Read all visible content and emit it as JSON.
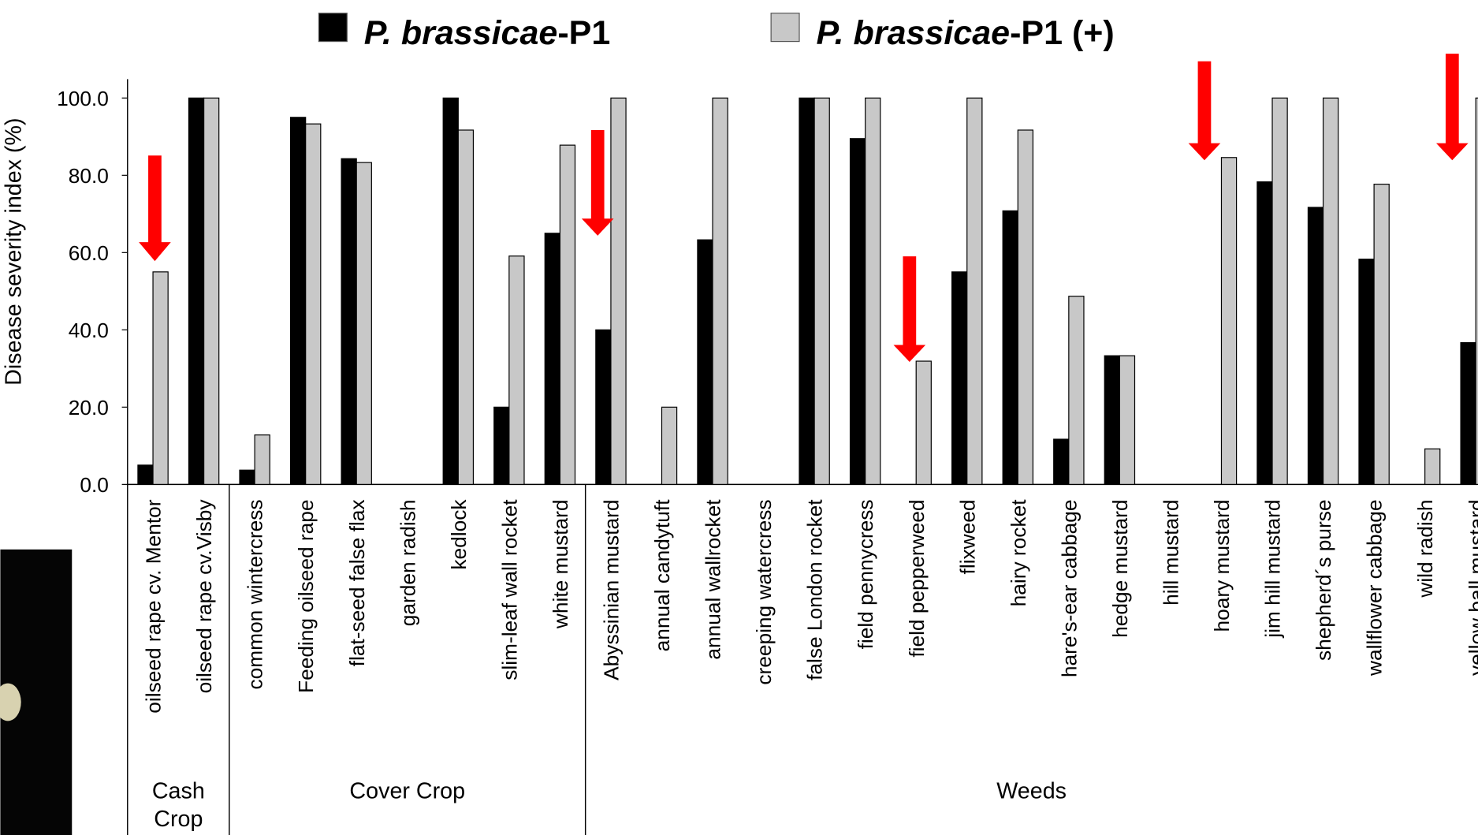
{
  "chart_data": {
    "type": "bar",
    "y_label": "Disease severity index (%)",
    "categories": [
      "oilseed rape cv. Mentor",
      "oilseed rape cv.Visby",
      "common wintercress",
      "Feeding oilseed rape",
      "flat-seed false flax",
      "garden radish",
      "kedlock",
      "slim-leaf wall rocket",
      "white mustard",
      "Abyssinian mustard",
      "annual candytuft",
      "annual wallrocket",
      "creeping watercress",
      "false London rocket",
      "field pennycress",
      "field pepperweed",
      "flixweed",
      "hairy rocket",
      "hare's-ear cabbage",
      "hedge mustard",
      "hill mustard",
      "hoary mustard",
      "jim hill mustard",
      "shepherd´s purse",
      "wallflower cabbage",
      "wild radish",
      "yellow ball mustard"
    ],
    "groups": [
      {
        "name": "Cash Crop",
        "count": 2
      },
      {
        "name": "Cover Crop",
        "count": 7
      },
      {
        "name": "Weeds",
        "count": 18
      }
    ],
    "series": [
      {
        "name": "P. brassicae-P1",
        "color": "#000000",
        "values": [
          5,
          100,
          3.7,
          95,
          84.3,
          0,
          100,
          20,
          65,
          40,
          0,
          63.3,
          0,
          100,
          89.5,
          0,
          55,
          70.8,
          11.7,
          33.3,
          0,
          0,
          78.3,
          71.7,
          58.3,
          0,
          36.7
        ]
      },
      {
        "name": "P. brassicae-P1 (+)",
        "color": "#c8c8c8",
        "values": [
          55,
          100,
          12.8,
          93.3,
          83.3,
          0,
          91.7,
          59.1,
          87.8,
          100,
          20,
          100,
          0,
          100,
          100,
          31.9,
          100,
          91.7,
          48.7,
          33.3,
          0,
          84.6,
          100,
          100,
          77.7,
          9.2,
          100
        ]
      }
    ],
    "ylim": [
      0,
      100
    ],
    "yticks": [
      {
        "value": 0,
        "label": "0.0"
      },
      {
        "value": 20,
        "label": "20.0"
      },
      {
        "value": 40,
        "label": "40.0"
      },
      {
        "value": 60,
        "label": "60.0"
      },
      {
        "value": 80,
        "label": "80.0"
      },
      {
        "value": 100,
        "label": "100.0"
      }
    ],
    "legend": "top"
  }
}
